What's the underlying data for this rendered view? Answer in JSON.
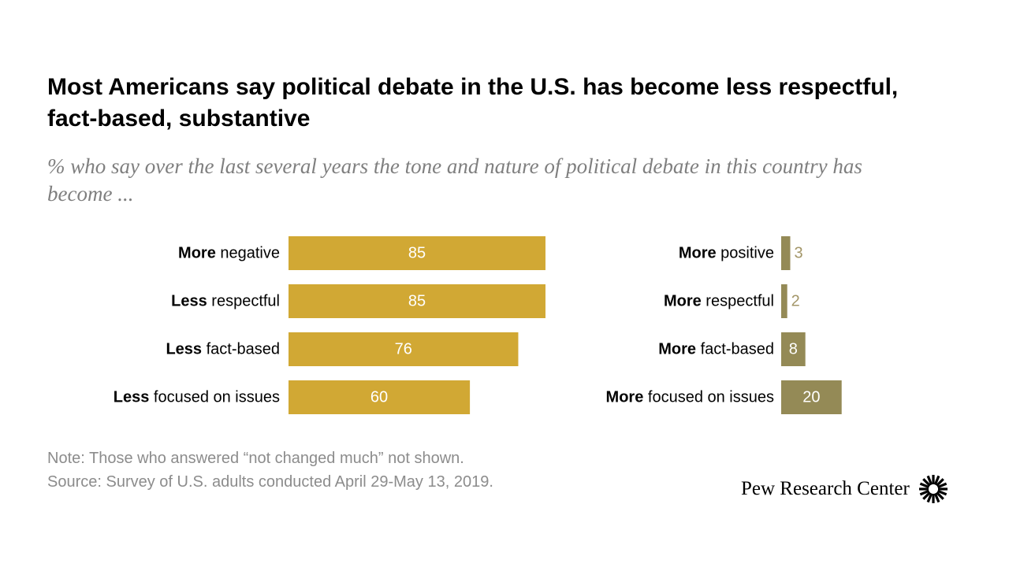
{
  "title": "Most Americans say political debate in the U.S. has become less respectful, fact-based, substantive",
  "subtitle": "% who say over the last several years the tone and nature of political debate in this country has become ...",
  "note": "Note: Those who answered “not changed much” not shown.",
  "source": "Source: Survey of U.S. adults conducted April 29-May 13, 2019.",
  "logo_text": "Pew Research Center",
  "colors": {
    "left_bar": "#D1A834",
    "right_bar": "#948A56",
    "right_outside_label": "#A39668",
    "inside_label": "#FFFFFF",
    "category_label": "#000000"
  },
  "chart_data": [
    {
      "type": "bar",
      "orientation": "horizontal",
      "categories": [
        {
          "bold": "More",
          "rest": " negative"
        },
        {
          "bold": "Less",
          "rest": " respectful"
        },
        {
          "bold": "Less",
          "rest": " fact-based"
        },
        {
          "bold": "Less",
          "rest": " focused on issues"
        }
      ],
      "values": [
        85,
        85,
        76,
        60
      ],
      "xlim": [
        0,
        100
      ]
    },
    {
      "type": "bar",
      "orientation": "horizontal",
      "categories": [
        {
          "bold": "More",
          "rest": " positive"
        },
        {
          "bold": "More",
          "rest": " respectful"
        },
        {
          "bold": "More",
          "rest": " fact-based"
        },
        {
          "bold": "More",
          "rest": " focused on issues"
        }
      ],
      "values": [
        3,
        2,
        8,
        20
      ],
      "xlim": [
        0,
        100
      ]
    }
  ]
}
